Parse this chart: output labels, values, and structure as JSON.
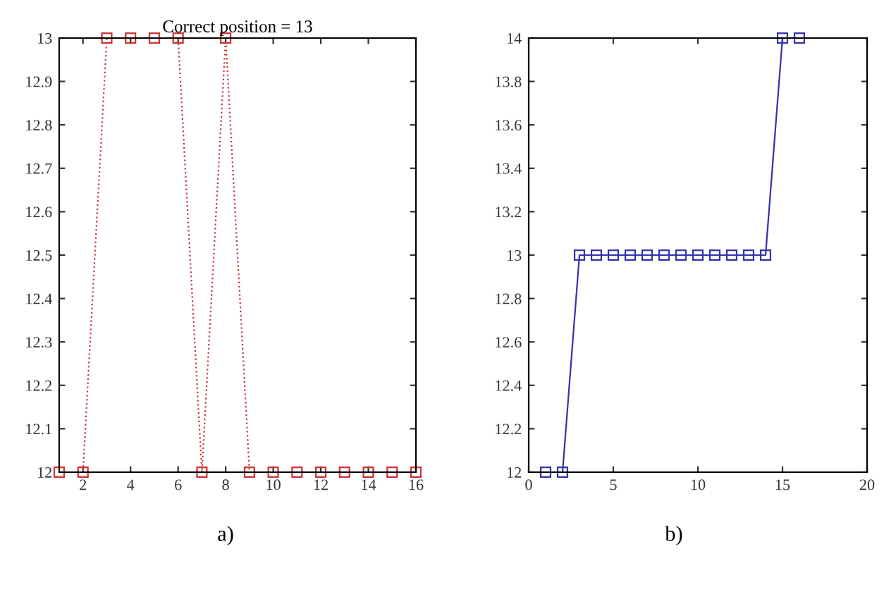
{
  "chart_data": [
    {
      "type": "line",
      "title": "Correct position = 13",
      "x": [
        1,
        2,
        3,
        4,
        5,
        6,
        7,
        8,
        9,
        10,
        11,
        12,
        13,
        14,
        15,
        16
      ],
      "series": [
        {
          "color": "#cc3333",
          "values": [
            12,
            12,
            13,
            13,
            13,
            13,
            12,
            13,
            12,
            12,
            12,
            12,
            12,
            12,
            12,
            12
          ]
        }
      ],
      "marker": "square",
      "line_style": "dotted",
      "xlim": [
        1,
        16
      ],
      "xticks": [
        2,
        4,
        6,
        8,
        10,
        12,
        14,
        16
      ],
      "ylim": [
        12,
        13
      ],
      "yticks": [
        12,
        12.1,
        12.2,
        12.3,
        12.4,
        12.5,
        12.6,
        12.7,
        12.8,
        12.9,
        13
      ],
      "grid": false,
      "legend": false,
      "annotations": [
        "a)"
      ]
    },
    {
      "type": "line",
      "x": [
        1,
        2,
        3,
        4,
        5,
        6,
        7,
        8,
        9,
        10,
        11,
        12,
        13,
        14,
        15,
        16
      ],
      "series": [
        {
          "color": "#3333aa",
          "values": [
            12,
            12,
            13,
            13,
            13,
            13,
            13,
            13,
            13,
            13,
            13,
            13,
            13,
            13,
            14,
            14
          ]
        }
      ],
      "marker": "square",
      "line_style": "solid",
      "xlim": [
        0,
        20
      ],
      "xticks": [
        0,
        5,
        10,
        15,
        20
      ],
      "ylim": [
        12,
        14
      ],
      "yticks": [
        12,
        12.2,
        12.4,
        12.6,
        12.8,
        13,
        13.2,
        13.4,
        13.6,
        13.8,
        14
      ],
      "grid": false,
      "legend": false,
      "annotations": [
        "b)"
      ]
    }
  ]
}
